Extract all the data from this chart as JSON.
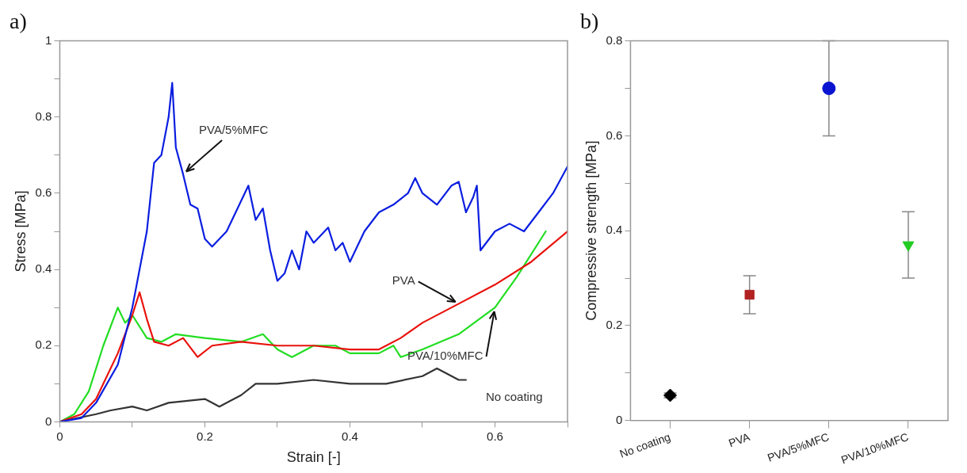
{
  "chart_data": [
    {
      "type": "line",
      "title": "a)",
      "xlabel": "Strain [-]",
      "ylabel": "Stress [MPa]",
      "xlim": [
        0,
        0.7
      ],
      "xticks": [
        0,
        {
          "value": 0.1,
          "label": null
        },
        0.2,
        {
          "value": 0.3,
          "label": null
        },
        0.4,
        {
          "value": 0.5,
          "label": null
        },
        0.6,
        {
          "value": 0.7,
          "label": null
        }
      ],
      "ylim": [
        0,
        1
      ],
      "yticks": [
        0,
        {
          "value": 0.1,
          "label": null
        },
        0.2,
        {
          "value": 0.3,
          "label": null
        },
        0.4,
        {
          "value": 0.5,
          "label": null
        },
        0.6,
        {
          "value": 0.7,
          "label": null
        },
        0.8,
        {
          "value": 0.9,
          "label": null
        },
        1
      ],
      "marker": "none",
      "line_style": "solid",
      "series": [
        {
          "name": "PVA/5%MFC",
          "color": "#0a1ee0",
          "x": [
            0,
            0.03,
            0.05,
            0.08,
            0.1,
            0.12,
            0.13,
            0.14,
            0.15,
            0.155,
            0.16,
            0.17,
            0.18,
            0.19,
            0.2,
            0.21,
            0.23,
            0.25,
            0.26,
            0.27,
            0.28,
            0.29,
            0.3,
            0.31,
            0.32,
            0.33,
            0.34,
            0.35,
            0.37,
            0.38,
            0.39,
            0.4,
            0.42,
            0.44,
            0.46,
            0.48,
            0.49,
            0.5,
            0.52,
            0.54,
            0.55,
            0.56,
            0.57,
            0.575,
            0.58,
            0.6,
            0.62,
            0.64,
            0.66,
            0.68,
            0.7
          ],
          "values": [
            0,
            0.01,
            0.05,
            0.15,
            0.3,
            0.5,
            0.68,
            0.7,
            0.8,
            0.89,
            0.72,
            0.65,
            0.57,
            0.56,
            0.48,
            0.46,
            0.5,
            0.58,
            0.62,
            0.53,
            0.56,
            0.45,
            0.37,
            0.39,
            0.45,
            0.4,
            0.5,
            0.47,
            0.51,
            0.45,
            0.47,
            0.42,
            0.5,
            0.55,
            0.57,
            0.6,
            0.64,
            0.6,
            0.57,
            0.62,
            0.63,
            0.55,
            0.59,
            0.62,
            0.45,
            0.5,
            0.52,
            0.5,
            0.55,
            0.6,
            0.67
          ]
        },
        {
          "name": "PVA",
          "color": "#e8120c",
          "x": [
            0,
            0.03,
            0.05,
            0.08,
            0.1,
            0.11,
            0.12,
            0.13,
            0.15,
            0.17,
            0.19,
            0.21,
            0.25,
            0.3,
            0.35,
            0.4,
            0.44,
            0.47,
            0.5,
            0.55,
            0.6,
            0.65,
            0.7
          ],
          "values": [
            0,
            0.02,
            0.06,
            0.18,
            0.28,
            0.34,
            0.27,
            0.21,
            0.2,
            0.22,
            0.17,
            0.2,
            0.21,
            0.2,
            0.2,
            0.19,
            0.19,
            0.22,
            0.26,
            0.31,
            0.36,
            0.42,
            0.5
          ]
        },
        {
          "name": "PVA/10%MFC",
          "color": "#22dd22",
          "x": [
            0,
            0.02,
            0.04,
            0.06,
            0.08,
            0.09,
            0.1,
            0.12,
            0.14,
            0.16,
            0.2,
            0.25,
            0.28,
            0.3,
            0.32,
            0.35,
            0.38,
            0.4,
            0.44,
            0.46,
            0.47,
            0.5,
            0.55,
            0.6,
            0.63,
            0.67
          ],
          "values": [
            0,
            0.02,
            0.08,
            0.2,
            0.3,
            0.26,
            0.28,
            0.22,
            0.21,
            0.23,
            0.22,
            0.21,
            0.23,
            0.19,
            0.17,
            0.2,
            0.2,
            0.18,
            0.18,
            0.2,
            0.17,
            0.19,
            0.23,
            0.3,
            0.38,
            0.5
          ]
        },
        {
          "name": "No coating",
          "color": "#333333",
          "x": [
            0,
            0.05,
            0.07,
            0.1,
            0.12,
            0.15,
            0.2,
            0.22,
            0.25,
            0.27,
            0.3,
            0.35,
            0.4,
            0.45,
            0.5,
            0.52,
            0.55,
            0.56
          ],
          "values": [
            0,
            0.02,
            0.03,
            0.04,
            0.03,
            0.05,
            0.06,
            0.04,
            0.07,
            0.1,
            0.1,
            0.11,
            0.1,
            0.1,
            0.12,
            0.14,
            0.11,
            0.11
          ]
        }
      ]
    },
    {
      "type": "scatter",
      "title": "b)",
      "ylabel": "Compressive strength [MPa]",
      "categories": [
        "No coating",
        "PVA",
        "PVA/5%MFC",
        "PVA/10%MFC"
      ],
      "ylim": [
        0,
        0.8
      ],
      "yticks": [
        0,
        {
          "value": 0.1,
          "label": null
        },
        0.2,
        {
          "value": 0.3,
          "label": null
        },
        0.4,
        {
          "value": 0.5,
          "label": null
        },
        0.6,
        {
          "value": 0.7,
          "label": null
        },
        0.8
      ],
      "series": [
        {
          "color": "#000000",
          "marker": "diamond",
          "values": [
            0.053,
            null,
            null,
            null
          ],
          "errors": [
            0.005,
            null,
            null,
            null
          ]
        },
        {
          "color": "#b22222",
          "marker": "square",
          "values": [
            null,
            0.265,
            null,
            null
          ],
          "errors": [
            null,
            [
              0.225,
              0.305
            ],
            null,
            null
          ]
        },
        {
          "color": "#0a14d0",
          "marker": "circle",
          "values": [
            null,
            null,
            0.7,
            null
          ],
          "errors": [
            null,
            null,
            [
              0.6,
              0.8
            ],
            null
          ]
        },
        {
          "color": "#22cc22",
          "marker": "triangle",
          "values": [
            null,
            null,
            null,
            0.37
          ],
          "errors": [
            null,
            null,
            null,
            [
              0.3,
              0.44
            ]
          ]
        }
      ]
    }
  ]
}
